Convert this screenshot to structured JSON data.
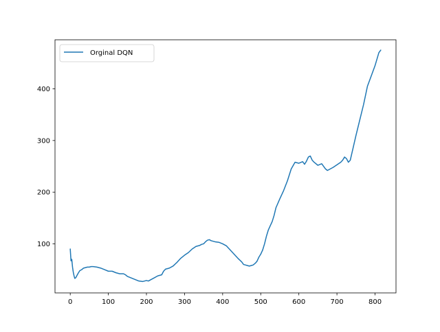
{
  "chart_data": {
    "type": "line",
    "title": "",
    "xlabel": "",
    "ylabel": "",
    "xlim": [
      -40,
      855
    ],
    "ylim": [
      5,
      495
    ],
    "xticks": [
      0,
      100,
      200,
      300,
      400,
      500,
      600,
      700,
      800
    ],
    "yticks": [
      100,
      200,
      300,
      400
    ],
    "xtick_labels": [
      "0",
      "100",
      "200",
      "300",
      "400",
      "500",
      "600",
      "700",
      "800"
    ],
    "ytick_labels": [
      "100",
      "200",
      "300",
      "400"
    ],
    "grid": false,
    "legend_position": "upper-left",
    "series": [
      {
        "name": "Orginal DQN",
        "color": "#1f77b4",
        "x": [
          0,
          2,
          4,
          6,
          8,
          10,
          12,
          15,
          20,
          25,
          30,
          35,
          40,
          45,
          50,
          55,
          60,
          70,
          80,
          90,
          100,
          110,
          120,
          125,
          130,
          140,
          145,
          150,
          160,
          170,
          180,
          190,
          200,
          205,
          210,
          215,
          220,
          230,
          240,
          245,
          250,
          260,
          270,
          280,
          290,
          300,
          310,
          320,
          330,
          340,
          345,
          350,
          355,
          360,
          365,
          370,
          375,
          380,
          390,
          400,
          410,
          420,
          430,
          440,
          450,
          455,
          460,
          465,
          470,
          475,
          480,
          485,
          490,
          495,
          500,
          505,
          510,
          515,
          520,
          525,
          530,
          535,
          540,
          550,
          560,
          570,
          580,
          590,
          600,
          610,
          615,
          620,
          625,
          630,
          635,
          640,
          650,
          660,
          670,
          675,
          680,
          690,
          700,
          710,
          715,
          720,
          725,
          730,
          735,
          740,
          750,
          760,
          770,
          780,
          790,
          800,
          810,
          815
        ],
        "y": [
          90,
          67,
          70,
          55,
          45,
          38,
          33,
          35,
          42,
          48,
          50,
          53,
          54,
          55,
          55,
          56,
          56,
          55,
          53,
          50,
          47,
          47,
          44,
          43,
          42,
          42,
          40,
          37,
          34,
          31,
          28,
          27,
          29,
          28,
          30,
          32,
          34,
          38,
          40,
          47,
          51,
          53,
          57,
          64,
          72,
          78,
          83,
          90,
          95,
          97,
          99,
          100,
          104,
          107,
          108,
          106,
          105,
          104,
          103,
          100,
          96,
          88,
          80,
          72,
          65,
          60,
          59,
          58,
          57,
          58,
          59,
          62,
          66,
          74,
          80,
          88,
          100,
          115,
          127,
          135,
          143,
          155,
          170,
          187,
          203,
          222,
          245,
          258,
          256,
          259,
          254,
          260,
          268,
          270,
          262,
          258,
          252,
          255,
          245,
          242,
          244,
          248,
          253,
          258,
          262,
          268,
          265,
          258,
          262,
          278,
          310,
          340,
          370,
          405,
          425,
          445,
          470,
          475
        ]
      }
    ]
  }
}
